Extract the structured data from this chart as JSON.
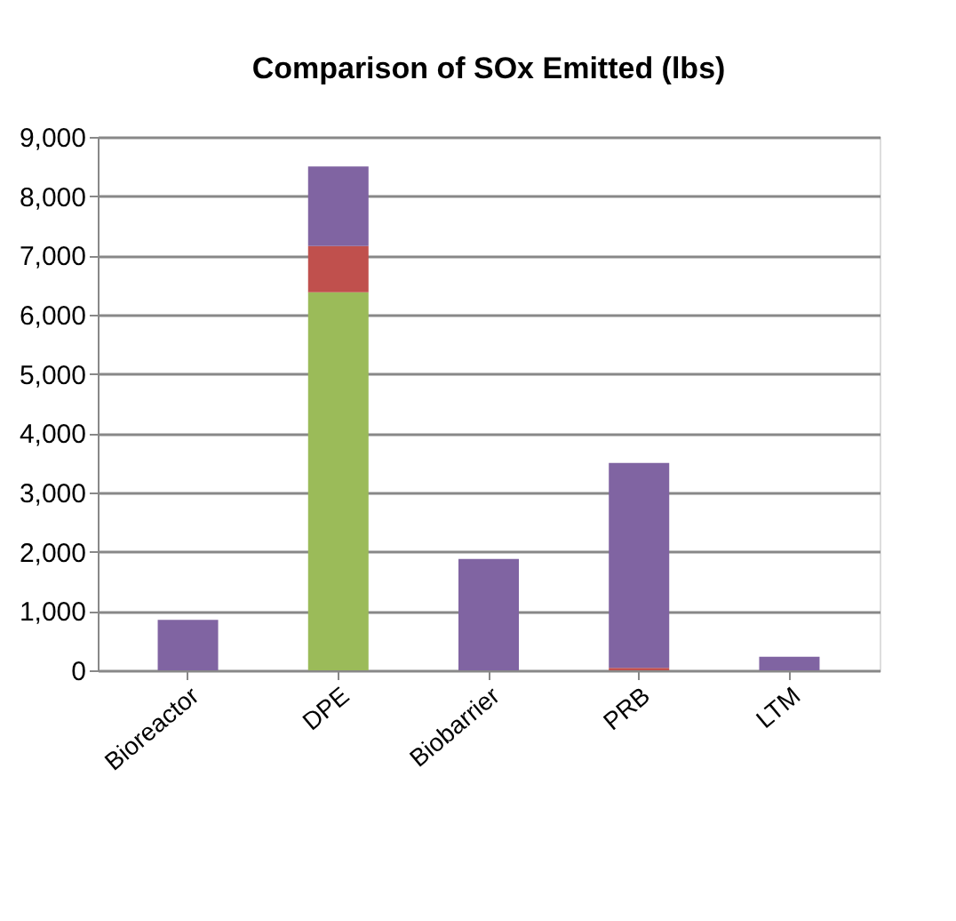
{
  "chart_data": {
    "type": "bar",
    "title": "Comparison of SOx Emitted (lbs)",
    "categories": [
      "Bioreactor",
      "DPE",
      "Biobarrier",
      "PRB",
      "LTM"
    ],
    "stacked": true,
    "series": [
      {
        "color": "#9bbb59",
        "values": [
          0,
          6380,
          0,
          0,
          0
        ]
      },
      {
        "color": "#c0504d",
        "values": [
          0,
          780,
          0,
          40,
          0
        ]
      },
      {
        "color": "#8064a2",
        "values": [
          850,
          1340,
          1880,
          3460,
          230
        ]
      }
    ],
    "ylim": [
      0,
      9000
    ],
    "yticks": [
      {
        "value": 0,
        "label": "0"
      },
      {
        "value": 1000,
        "label": "1,000"
      },
      {
        "value": 2000,
        "label": "2,000"
      },
      {
        "value": 3000,
        "label": "3,000"
      },
      {
        "value": 4000,
        "label": "4,000"
      },
      {
        "value": 5000,
        "label": "5,000"
      },
      {
        "value": 6000,
        "label": "6,000"
      },
      {
        "value": 7000,
        "label": "7,000"
      },
      {
        "value": 8000,
        "label": "8,000"
      },
      {
        "value": 9000,
        "label": "9,000"
      }
    ],
    "grid": "y",
    "legend": false
  }
}
